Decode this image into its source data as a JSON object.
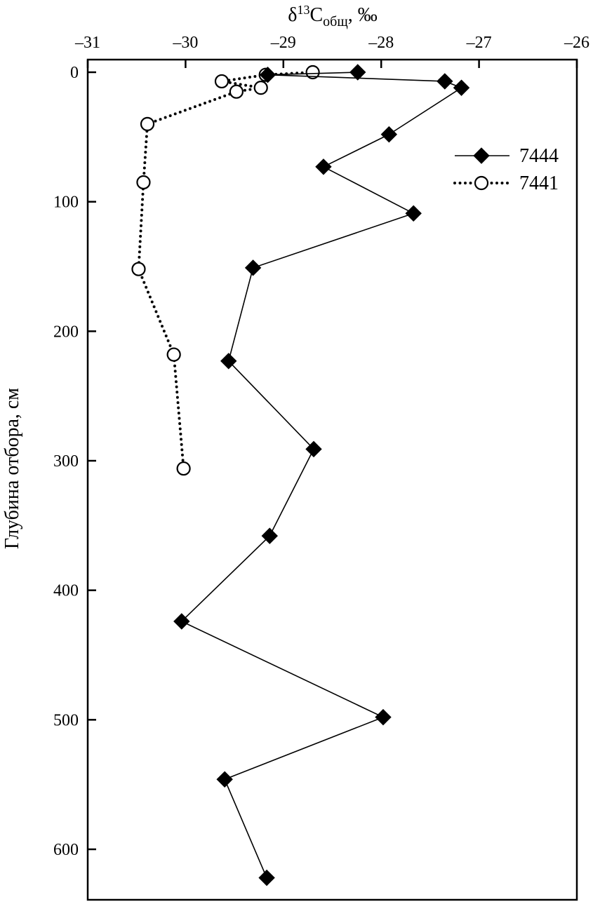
{
  "chart_data": {
    "type": "line",
    "xlabel": {
      "main": "δ",
      "sup": "13",
      "base": "C",
      "sub": "общ",
      "suffix": ", ‰"
    },
    "ylabel": "Глубина отбора, см",
    "xlim": [
      -31,
      -26
    ],
    "ylim": [
      0,
      640
    ],
    "x_ticks": [
      -31,
      -30,
      -29,
      -28,
      -27,
      -26
    ],
    "x_tick_labels": [
      "–31",
      "–30",
      "–29",
      "–28",
      "–27",
      "–26"
    ],
    "y_ticks": [
      0,
      100,
      200,
      300,
      400,
      500,
      600
    ],
    "y_tick_labels": [
      "0",
      "100",
      "200",
      "300",
      "400",
      "500",
      "600"
    ],
    "y_inverted": true,
    "grid": false,
    "legend_position": "top-right",
    "series": [
      {
        "name": "7444",
        "marker": "diamond-filled",
        "line_style": "solid",
        "color": "#000000",
        "points": [
          {
            "x": -28.24,
            "y": 0
          },
          {
            "x": -29.16,
            "y": 2
          },
          {
            "x": -27.35,
            "y": 7
          },
          {
            "x": -27.18,
            "y": 12
          },
          {
            "x": -27.92,
            "y": 48
          },
          {
            "x": -28.59,
            "y": 73
          },
          {
            "x": -27.67,
            "y": 109
          },
          {
            "x": -29.31,
            "y": 151
          },
          {
            "x": -29.56,
            "y": 223
          },
          {
            "x": -28.69,
            "y": 291
          },
          {
            "x": -29.14,
            "y": 358
          },
          {
            "x": -30.04,
            "y": 424
          },
          {
            "x": -27.98,
            "y": 498
          },
          {
            "x": -29.6,
            "y": 546
          },
          {
            "x": -29.17,
            "y": 622
          }
        ]
      },
      {
        "name": "7441",
        "marker": "circle-open",
        "line_style": "dotted",
        "color": "#000000",
        "points": [
          {
            "x": -28.7,
            "y": 0
          },
          {
            "x": -29.18,
            "y": 2
          },
          {
            "x": -29.63,
            "y": 7
          },
          {
            "x": -29.23,
            "y": 12
          },
          {
            "x": -29.48,
            "y": 15
          },
          {
            "x": -30.39,
            "y": 40
          },
          {
            "x": -30.43,
            "y": 85
          },
          {
            "x": -30.48,
            "y": 152
          },
          {
            "x": -30.12,
            "y": 218
          },
          {
            "x": -30.02,
            "y": 306
          }
        ]
      }
    ]
  }
}
